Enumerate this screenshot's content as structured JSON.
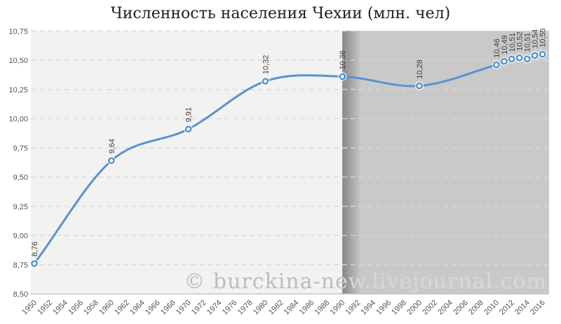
{
  "watermark": "© burckina-new.livejournal.com",
  "chart_data": {
    "type": "line",
    "title": "Численность населения Чехии (млн. чел)",
    "xlabel": "",
    "ylabel": "",
    "xlim": [
      1950,
      2017
    ],
    "ylim": [
      8.5,
      10.75
    ],
    "grid": "horizontal-dashed",
    "legend_position": "none",
    "y_ticks": [
      {
        "value": 8.5,
        "label": "8,50"
      },
      {
        "value": 8.75,
        "label": "8,75"
      },
      {
        "value": 9.0,
        "label": "9,00"
      },
      {
        "value": 9.25,
        "label": "9,25"
      },
      {
        "value": 9.5,
        "label": "9,50"
      },
      {
        "value": 9.75,
        "label": "9,75"
      },
      {
        "value": 10.0,
        "label": "10,00"
      },
      {
        "value": 10.25,
        "label": "10,25"
      },
      {
        "value": 10.5,
        "label": "10,50"
      },
      {
        "value": 10.75,
        "label": "10,75"
      }
    ],
    "x_tick_labels": [
      "1950",
      "1952",
      "1954",
      "1956",
      "1958",
      "1960",
      "1962",
      "1964",
      "1966",
      "1968",
      "1970",
      "1972",
      "1974",
      "1976",
      "1978",
      "1980",
      "1982",
      "1984",
      "1986",
      "1988",
      "1990",
      "1992",
      "1994",
      "1996",
      "1998",
      "2000",
      "2002",
      "2004",
      "2006",
      "2008",
      "2010",
      "2012",
      "2014",
      "2016"
    ],
    "series": [
      {
        "points": [
          {
            "year": 1950,
            "value": 8.76,
            "label": "8,76"
          },
          {
            "year": 1960,
            "value": 9.64,
            "label": "9,64"
          },
          {
            "year": 1970,
            "value": 9.91,
            "label": "9,91"
          },
          {
            "year": 1980,
            "value": 10.32,
            "label": "10,32"
          },
          {
            "year": 1990,
            "value": 10.36,
            "label": "10,36"
          },
          {
            "year": 2000,
            "value": 10.28,
            "label": "10,28"
          },
          {
            "year": 2010,
            "value": 10.46,
            "label": "10,46"
          },
          {
            "year": 2011,
            "value": 10.49,
            "label": "10,49"
          },
          {
            "year": 2012,
            "value": 10.51,
            "label": "10,51"
          },
          {
            "year": 2013,
            "value": 10.52,
            "label": "10,52"
          },
          {
            "year": 2014,
            "value": 10.51,
            "label": "10,51"
          },
          {
            "year": 2015,
            "value": 10.54,
            "label": "10,54"
          },
          {
            "year": 2016,
            "value": 10.55,
            "label": "10,55"
          }
        ]
      }
    ],
    "background_eras": [
      {
        "from": 1950,
        "to": 1990,
        "color": "#f2f2f1"
      },
      {
        "from": 1990,
        "to": 2017,
        "color": "#c9c9c9"
      }
    ],
    "colors": {
      "line": "#5694d1",
      "marker_fill": "#ffffff",
      "marker_stroke": "#4c8dc9",
      "marker_glow": "rgba(255,255,255,0.55)",
      "grid": "#d9d9d9",
      "axis": "#bdbdbd",
      "era_edge_shadow": "#878787",
      "tick_label": "#555555",
      "point_label": "#404040",
      "title": "#1f1f1f",
      "watermark_on_light": "#bdbdbd",
      "watermark_on_dark": "#d8d8d8"
    }
  }
}
